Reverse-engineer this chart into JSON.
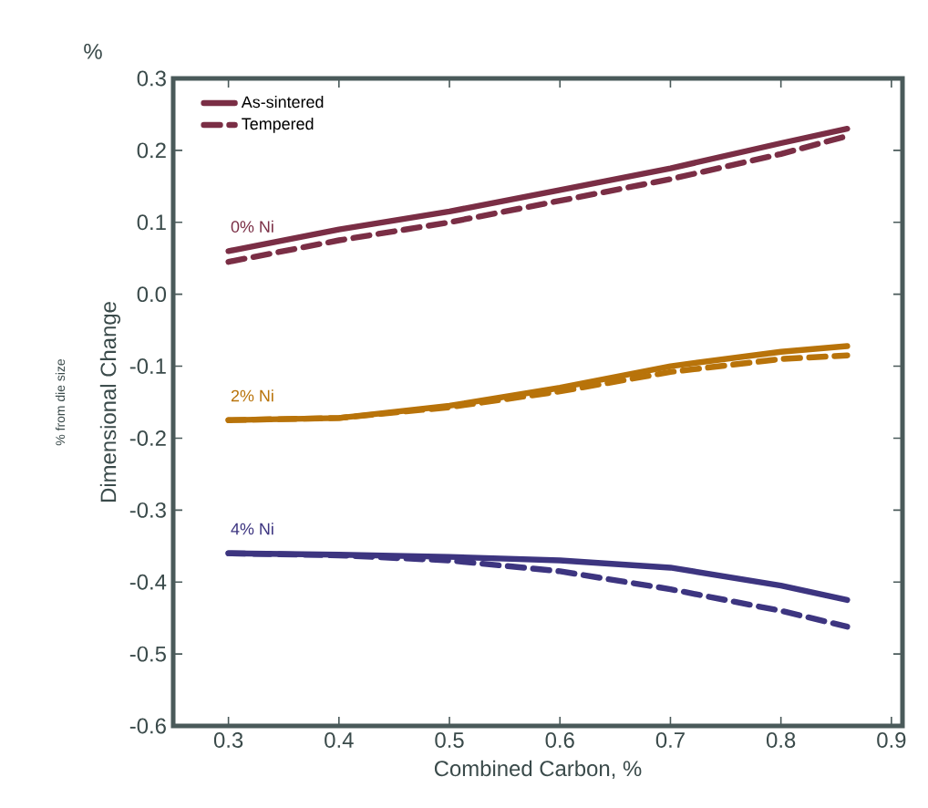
{
  "chart_data": {
    "type": "line",
    "xlabel": "Combined Carbon, %",
    "ylabel": "Dimensional Change",
    "annotations": [
      "%",
      "% from die size",
      "0% Ni",
      "2% Ni",
      "4% Ni"
    ],
    "x": [
      0.3,
      0.4,
      0.5,
      0.6,
      0.7,
      0.8,
      0.86
    ],
    "series": [
      {
        "name": "As-sintered",
        "color": "#7a2e45",
        "line_style": "solid",
        "values": [
          0.06,
          0.09,
          0.115,
          0.145,
          0.175,
          0.21,
          0.23
        ]
      },
      {
        "name": "Tempered",
        "color": "#7a2e45",
        "line_style": "dashed",
        "values": [
          0.045,
          0.075,
          0.1,
          0.13,
          0.16,
          0.195,
          0.22
        ]
      },
      {
        "color": "#b8730a",
        "line_style": "solid",
        "values": [
          -0.175,
          -0.172,
          -0.155,
          -0.13,
          -0.1,
          -0.08,
          -0.072
        ]
      },
      {
        "color": "#b8730a",
        "line_style": "dashed",
        "values": [
          -0.175,
          -0.172,
          -0.157,
          -0.135,
          -0.108,
          -0.09,
          -0.085
        ]
      },
      {
        "color": "#3d3580",
        "line_style": "solid",
        "values": [
          -0.36,
          -0.362,
          -0.365,
          -0.37,
          -0.38,
          -0.405,
          -0.425
        ]
      },
      {
        "color": "#3d3580",
        "line_style": "dashed",
        "values": [
          -0.36,
          -0.363,
          -0.37,
          -0.385,
          -0.41,
          -0.44,
          -0.462
        ]
      }
    ],
    "xlim": [
      0.25,
      0.91
    ],
    "ylim": [
      -0.6,
      0.3
    ],
    "xticks": [
      0.3,
      0.4,
      0.5,
      0.6,
      0.7,
      0.8,
      0.9
    ],
    "yticks": [
      0.3,
      0.2,
      0.1,
      {
        "value": 0,
        "label": "0.0"
      },
      -0.1,
      -0.2,
      -0.3,
      -0.4,
      -0.5,
      -0.6
    ],
    "grid": false,
    "legend": "top left",
    "marker": "none"
  }
}
